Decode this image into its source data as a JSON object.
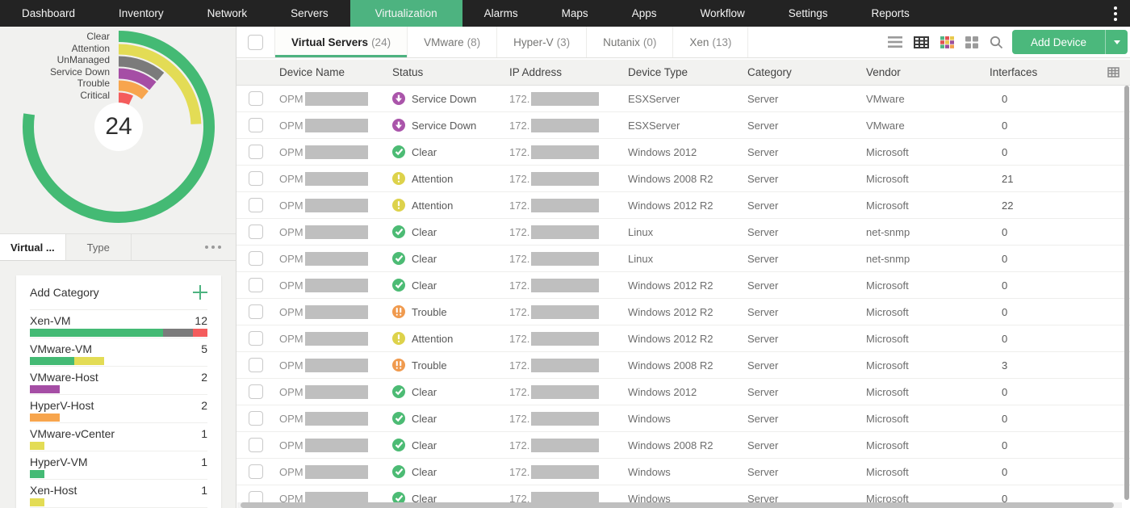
{
  "top_nav": {
    "items": [
      {
        "label": "Dashboard",
        "active": false
      },
      {
        "label": "Inventory",
        "active": false
      },
      {
        "label": "Network",
        "active": false
      },
      {
        "label": "Servers",
        "active": false
      },
      {
        "label": "Virtualization",
        "active": true
      },
      {
        "label": "Alarms",
        "active": false
      },
      {
        "label": "Maps",
        "active": false
      },
      {
        "label": "Apps",
        "active": false
      },
      {
        "label": "Workflow",
        "active": false
      },
      {
        "label": "Settings",
        "active": false
      },
      {
        "label": "Reports",
        "active": false
      }
    ]
  },
  "sidebar": {
    "chart_data": {
      "type": "donut-gauge",
      "total_label": "24",
      "rings": [
        {
          "label": "Clear",
          "color": "#44ba74",
          "degrees": 278
        },
        {
          "label": "Attention",
          "color": "#e3dc55",
          "degrees": 88
        },
        {
          "label": "UnManaged",
          "color": "#7b7b7b",
          "degrees": 40
        },
        {
          "label": "Service Down",
          "color": "#a54ea5",
          "degrees": 40
        },
        {
          "label": "Trouble",
          "color": "#f7a54d",
          "degrees": 40
        },
        {
          "label": "Critical",
          "color": "#f45c5c",
          "degrees": 25
        }
      ]
    },
    "tabs": [
      {
        "label": "Virtual ...",
        "active": true
      },
      {
        "label": "Type",
        "active": false
      }
    ],
    "add_category_label": "Add Category",
    "categories": [
      {
        "name": "Xen-VM",
        "count": "12",
        "segments": [
          {
            "color": "#44ba74",
            "pct": 75
          },
          {
            "color": "#7b7b7b",
            "pct": 16.7
          },
          {
            "color": "#f45c5c",
            "pct": 8.3
          }
        ]
      },
      {
        "name": "VMware-VM",
        "count": "5",
        "segments": [
          {
            "color": "#44ba74",
            "pct": 25
          },
          {
            "color": "#e3dc55",
            "pct": 16.7
          }
        ]
      },
      {
        "name": "VMware-Host",
        "count": "2",
        "segments": [
          {
            "color": "#a54ea5",
            "pct": 16.7
          }
        ]
      },
      {
        "name": "HyperV-Host",
        "count": "2",
        "segments": [
          {
            "color": "#f7a54d",
            "pct": 16.7
          }
        ]
      },
      {
        "name": "VMware-vCenter",
        "count": "1",
        "segments": [
          {
            "color": "#e3dc55",
            "pct": 8.3
          }
        ]
      },
      {
        "name": "HyperV-VM",
        "count": "1",
        "segments": [
          {
            "color": "#44ba74",
            "pct": 8.3
          }
        ]
      },
      {
        "name": "Xen-Host",
        "count": "1",
        "segments": [
          {
            "color": "#e3dc55",
            "pct": 8.3
          }
        ]
      }
    ]
  },
  "main": {
    "tabs": [
      {
        "label": "Virtual Servers",
        "count": "(24)",
        "active": true
      },
      {
        "label": "VMware",
        "count": "(8)",
        "active": false
      },
      {
        "label": "Hyper-V",
        "count": "(3)",
        "active": false
      },
      {
        "label": "Nutanix",
        "count": "(0)",
        "active": false
      },
      {
        "label": "Xen",
        "count": "(13)",
        "active": false
      }
    ],
    "add_device_label": "Add Device",
    "table": {
      "columns": [
        "Device Name",
        "Status",
        "IP Address",
        "Device Type",
        "Category",
        "Vendor",
        "Interfaces"
      ],
      "name_prefix": "OPM",
      "ip_prefix": "172.",
      "statuses": {
        "Clear": {
          "color": "#4cbb74",
          "glyph": "check"
        },
        "Attention": {
          "color": "#ddd24b",
          "glyph": "exclamation"
        },
        "Trouble": {
          "color": "#f09a4e",
          "glyph": "double-exclamation"
        },
        "Service Down": {
          "color": "#aa55aa",
          "glyph": "arrow-down"
        }
      },
      "rows": [
        {
          "status": "Service Down",
          "device_type": "ESXServer",
          "category": "Server",
          "vendor": "VMware",
          "interfaces": "0"
        },
        {
          "status": "Service Down",
          "device_type": "ESXServer",
          "category": "Server",
          "vendor": "VMware",
          "interfaces": "0"
        },
        {
          "status": "Clear",
          "device_type": "Windows 2012",
          "category": "Server",
          "vendor": "Microsoft",
          "interfaces": "0"
        },
        {
          "status": "Attention",
          "device_type": "Windows 2008 R2",
          "category": "Server",
          "vendor": "Microsoft",
          "interfaces": "21"
        },
        {
          "status": "Attention",
          "device_type": "Windows 2012 R2",
          "category": "Server",
          "vendor": "Microsoft",
          "interfaces": "22"
        },
        {
          "status": "Clear",
          "device_type": "Linux",
          "category": "Server",
          "vendor": "net-snmp",
          "interfaces": "0"
        },
        {
          "status": "Clear",
          "device_type": "Linux",
          "category": "Server",
          "vendor": "net-snmp",
          "interfaces": "0"
        },
        {
          "status": "Clear",
          "device_type": "Windows 2012 R2",
          "category": "Server",
          "vendor": "Microsoft",
          "interfaces": "0"
        },
        {
          "status": "Trouble",
          "device_type": "Windows 2012 R2",
          "category": "Server",
          "vendor": "Microsoft",
          "interfaces": "0"
        },
        {
          "status": "Attention",
          "device_type": "Windows 2012 R2",
          "category": "Server",
          "vendor": "Microsoft",
          "interfaces": "0"
        },
        {
          "status": "Trouble",
          "device_type": "Windows 2008 R2",
          "category": "Server",
          "vendor": "Microsoft",
          "interfaces": "3"
        },
        {
          "status": "Clear",
          "device_type": "Windows 2012",
          "category": "Server",
          "vendor": "Microsoft",
          "interfaces": "0"
        },
        {
          "status": "Clear",
          "device_type": "Windows",
          "category": "Server",
          "vendor": "Microsoft",
          "interfaces": "0"
        },
        {
          "status": "Clear",
          "device_type": "Windows 2008 R2",
          "category": "Server",
          "vendor": "Microsoft",
          "interfaces": "0"
        },
        {
          "status": "Clear",
          "device_type": "Windows",
          "category": "Server",
          "vendor": "Microsoft",
          "interfaces": "0"
        },
        {
          "status": "Clear",
          "device_type": "Windows",
          "category": "Server",
          "vendor": "Microsoft",
          "interfaces": "0"
        }
      ]
    }
  }
}
